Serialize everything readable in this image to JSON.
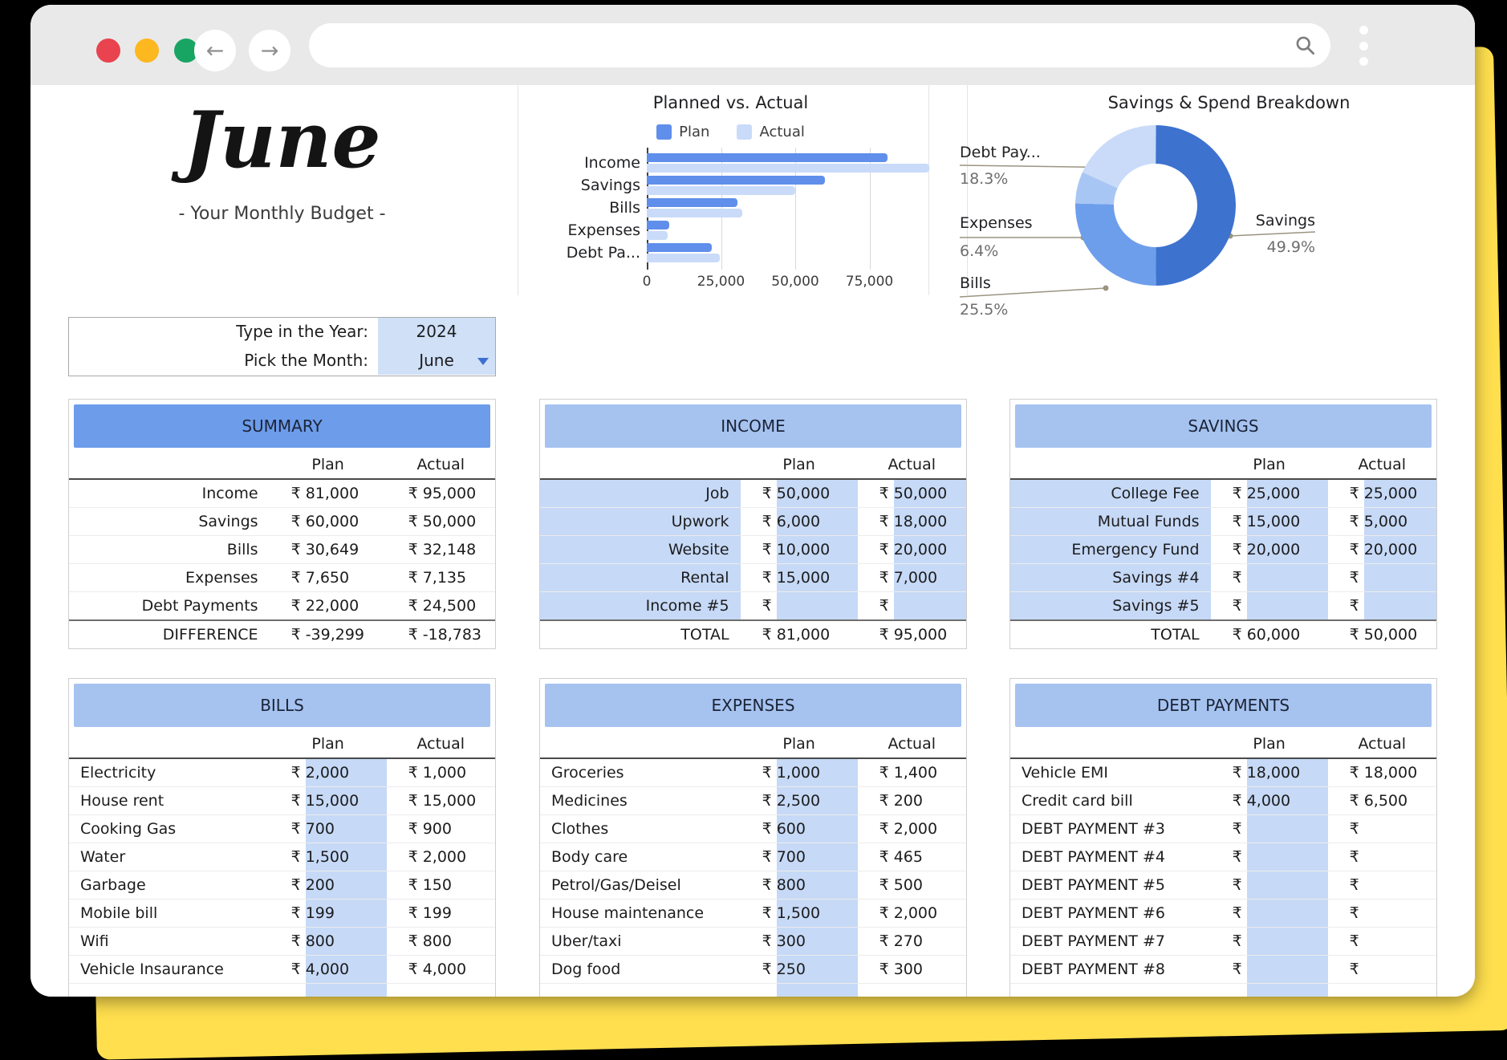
{
  "header": {
    "month_title": "June",
    "subtitle": "- Your Monthly Budget -",
    "year_label": "Type in the Year:",
    "year_value": "2024",
    "month_label": "Pick the Month:",
    "month_value": "June"
  },
  "browser": {
    "back_icon": "←",
    "forward_icon": "→",
    "icons": [
      "close",
      "minimize",
      "maximize",
      "search-icon",
      "kebab-menu-icon"
    ]
  },
  "colors": {
    "plan_bar": "#5f8fea",
    "actual_bar": "#c9dbf8",
    "header_strong": "#6d9ceb",
    "header_light": "#a6c3f0",
    "cell_shade": "#c6d9f6",
    "picker_shade": "#cfe0f7",
    "yellow_card": "#ffdf4e"
  },
  "chart_data": [
    {
      "type": "bar",
      "orientation": "horizontal",
      "title": "Planned vs. Actual",
      "categories": [
        "Income",
        "Savings",
        "Bills",
        "Expenses",
        "Debt Pa..."
      ],
      "series": [
        {
          "name": "Plan",
          "color": "#5f8fea",
          "values": [
            81000,
            60000,
            30649,
            7650,
            22000
          ]
        },
        {
          "name": "Actual",
          "color": "#c9dbf8",
          "values": [
            95000,
            50000,
            32148,
            7135,
            24500
          ]
        }
      ],
      "xlim": [
        0,
        100000
      ],
      "xticks": [
        0,
        25000,
        50000,
        75000
      ],
      "xtick_labels": [
        "0",
        "25,000",
        "50,000",
        "75,000"
      ],
      "grid": true,
      "legend_position": "top"
    },
    {
      "type": "pie",
      "subtype": "donut",
      "title": "Savings & Spend Breakdown",
      "slices": [
        {
          "label": "Savings",
          "pct": 49.9,
          "pct_label": "49.9%",
          "color": "#3d72cf"
        },
        {
          "label": "Bills",
          "pct": 25.5,
          "pct_label": "25.5%",
          "color": "#6d9eeb"
        },
        {
          "label": "Expenses",
          "pct": 6.4,
          "pct_label": "6.4%",
          "color": "#a8c6f4"
        },
        {
          "label": "Debt Pay...",
          "pct": 18.3,
          "pct_label": "18.3%",
          "color": "#c9dbf8"
        }
      ],
      "legend_position": "labels-with-leader-lines"
    }
  ],
  "tables": {
    "summary": {
      "title": "SUMMARY",
      "columns": [
        "Plan",
        "Actual"
      ],
      "currency": "₹",
      "rows": [
        {
          "label": "Income",
          "plan": "81,000",
          "actual": "95,000"
        },
        {
          "label": "Savings",
          "plan": "60,000",
          "actual": "50,000"
        },
        {
          "label": "Bills",
          "plan": "30,649",
          "actual": "32,148"
        },
        {
          "label": "Expenses",
          "plan": "7,650",
          "actual": "7,135"
        },
        {
          "label": "Debt Payments",
          "plan": "22,000",
          "actual": "24,500"
        }
      ],
      "footer": {
        "label": "DIFFERENCE",
        "plan": "-39,299",
        "actual": "-18,783"
      }
    },
    "income": {
      "title": "INCOME",
      "columns": [
        "Plan",
        "Actual"
      ],
      "currency": "₹",
      "rows": [
        {
          "label": "Job",
          "plan": "50,000",
          "actual": "50,000"
        },
        {
          "label": "Upwork",
          "plan": "6,000",
          "actual": "18,000"
        },
        {
          "label": "Website",
          "plan": "10,000",
          "actual": "20,000"
        },
        {
          "label": "Rental",
          "plan": "15,000",
          "actual": "7,000"
        },
        {
          "label": "Income #5",
          "plan": "",
          "actual": ""
        }
      ],
      "footer": {
        "label": "TOTAL",
        "plan": "81,000",
        "actual": "95,000"
      }
    },
    "savings": {
      "title": "SAVINGS",
      "columns": [
        "Plan",
        "Actual"
      ],
      "currency": "₹",
      "rows": [
        {
          "label": "College Fee",
          "plan": "25,000",
          "actual": "25,000"
        },
        {
          "label": "Mutual Funds",
          "plan": "15,000",
          "actual": "5,000"
        },
        {
          "label": "Emergency Fund",
          "plan": "20,000",
          "actual": "20,000"
        },
        {
          "label": "Savings #4",
          "plan": "",
          "actual": ""
        },
        {
          "label": "Savings #5",
          "plan": "",
          "actual": ""
        }
      ],
      "footer": {
        "label": "TOTAL",
        "plan": "60,000",
        "actual": "50,000"
      }
    },
    "bills": {
      "title": "BILLS",
      "columns": [
        "Plan",
        "Actual"
      ],
      "currency": "₹",
      "rows": [
        {
          "label": "Electricity",
          "plan": "2,000",
          "actual": "1,000"
        },
        {
          "label": "House rent",
          "plan": "15,000",
          "actual": "15,000"
        },
        {
          "label": "Cooking Gas",
          "plan": "700",
          "actual": "900"
        },
        {
          "label": "Water",
          "plan": "1,500",
          "actual": "2,000"
        },
        {
          "label": "Garbage",
          "plan": "200",
          "actual": "150"
        },
        {
          "label": "Mobile bill",
          "plan": "199",
          "actual": "199"
        },
        {
          "label": "Wifi",
          "plan": "800",
          "actual": "800"
        },
        {
          "label": "Vehicle Insaurance",
          "plan": "4,000",
          "actual": "4,000"
        }
      ]
    },
    "expenses": {
      "title": "EXPENSES",
      "columns": [
        "Plan",
        "Actual"
      ],
      "currency": "₹",
      "rows": [
        {
          "label": "Groceries",
          "plan": "1,000",
          "actual": "1,400"
        },
        {
          "label": "Medicines",
          "plan": "2,500",
          "actual": "200"
        },
        {
          "label": "Clothes",
          "plan": "600",
          "actual": "2,000"
        },
        {
          "label": "Body care",
          "plan": "700",
          "actual": "465"
        },
        {
          "label": "Petrol/Gas/Deisel",
          "plan": "800",
          "actual": "500"
        },
        {
          "label": "House maintenance",
          "plan": "1,500",
          "actual": "2,000"
        },
        {
          "label": "Uber/taxi",
          "plan": "300",
          "actual": "270"
        },
        {
          "label": "Dog food",
          "plan": "250",
          "actual": "300"
        }
      ]
    },
    "debt": {
      "title": "DEBT PAYMENTS",
      "columns": [
        "Plan",
        "Actual"
      ],
      "currency": "₹",
      "rows": [
        {
          "label": "Vehicle EMI",
          "plan": "18,000",
          "actual": "18,000"
        },
        {
          "label": "Credit card bill",
          "plan": "4,000",
          "actual": "6,500"
        },
        {
          "label": "DEBT PAYMENT #3",
          "plan": "",
          "actual": ""
        },
        {
          "label": "DEBT PAYMENT #4",
          "plan": "",
          "actual": ""
        },
        {
          "label": "DEBT PAYMENT #5",
          "plan": "",
          "actual": ""
        },
        {
          "label": "DEBT PAYMENT #6",
          "plan": "",
          "actual": ""
        },
        {
          "label": "DEBT PAYMENT #7",
          "plan": "",
          "actual": ""
        },
        {
          "label": "DEBT PAYMENT #8",
          "plan": "",
          "actual": ""
        }
      ]
    }
  }
}
